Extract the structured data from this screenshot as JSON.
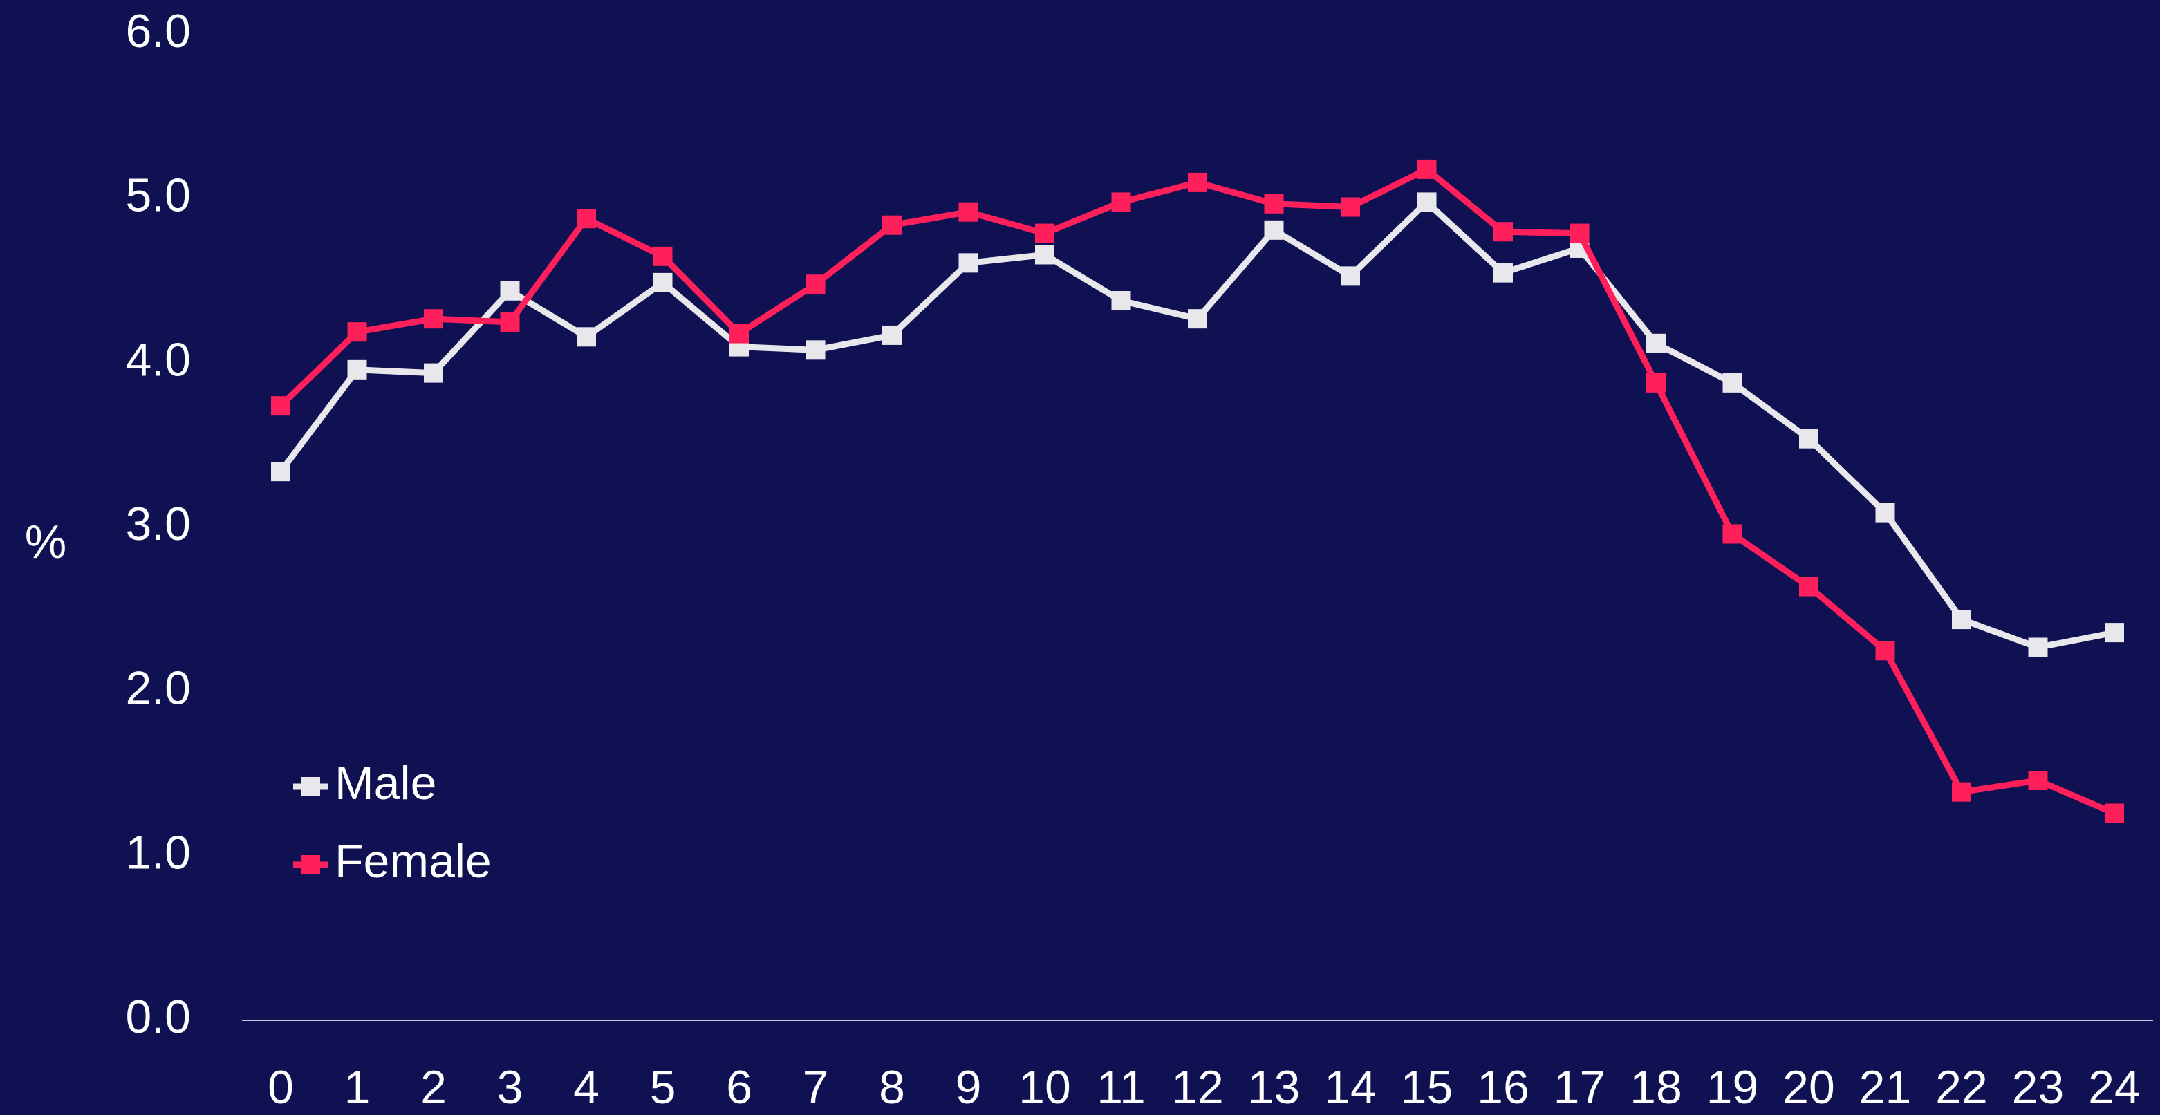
{
  "chart_data": {
    "type": "line",
    "ylabel": "%",
    "x": [
      0,
      1,
      2,
      3,
      4,
      5,
      6,
      7,
      8,
      9,
      10,
      11,
      12,
      13,
      14,
      15,
      16,
      17,
      18,
      19,
      20,
      21,
      22,
      23,
      24
    ],
    "xlim": [
      0,
      24
    ],
    "ylim": [
      0,
      6
    ],
    "yticks": [
      {
        "value": 0,
        "label": "0.0"
      },
      {
        "value": 1,
        "label": "1.0"
      },
      {
        "value": 2,
        "label": "2.0"
      },
      {
        "value": 3,
        "label": "3.0"
      },
      {
        "value": 4,
        "label": "4.0"
      },
      {
        "value": 5,
        "label": "5.0"
      },
      {
        "value": 6,
        "label": "6.0"
      }
    ],
    "legend": "lower left",
    "series": [
      {
        "name": "Male",
        "color": "#e8e8ec",
        "values": [
          3.34,
          3.96,
          3.94,
          4.44,
          4.16,
          4.49,
          4.1,
          4.08,
          4.17,
          4.61,
          4.66,
          4.38,
          4.27,
          4.81,
          4.53,
          4.98,
          4.55,
          4.7,
          4.12,
          3.88,
          3.54,
          3.09,
          2.44,
          2.27,
          2.36
        ]
      },
      {
        "name": "Female",
        "color": "#ff1f5a",
        "values": [
          3.74,
          4.19,
          4.27,
          4.25,
          4.88,
          4.65,
          4.18,
          4.48,
          4.84,
          4.92,
          4.79,
          4.98,
          5.1,
          4.97,
          4.95,
          5.18,
          4.8,
          4.79,
          3.88,
          2.96,
          2.64,
          2.25,
          1.39,
          1.46,
          1.26
        ]
      }
    ]
  }
}
